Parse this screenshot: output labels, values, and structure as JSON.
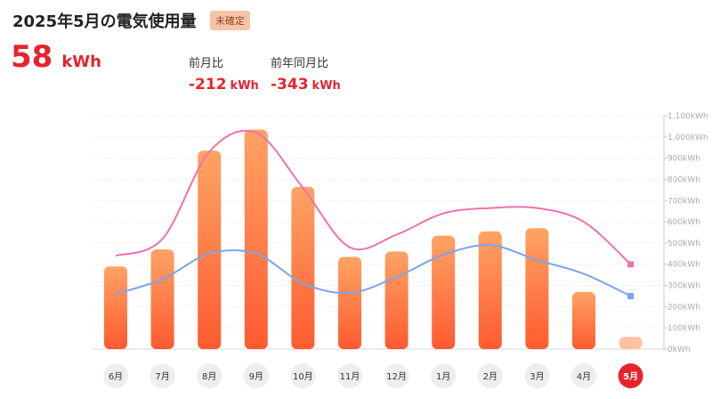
{
  "header": {
    "title": "2025年5月の電気使用量",
    "badge": "未確定"
  },
  "usage": {
    "value": "58",
    "unit": "kWh"
  },
  "comparisons": {
    "prev_month": {
      "label": "前月比",
      "value": "-212",
      "unit": "kWh"
    },
    "prev_year": {
      "label": "前年同月比",
      "value": "-343",
      "unit": "kWh"
    }
  },
  "colors": {
    "bar_gradient_top": "#ffa364",
    "bar_gradient_bottom": "#ff5a30",
    "bar_unconfirmed": "#ffc1a4",
    "prev_year_line": "#f070b0",
    "avg_line": "#7aa5ec",
    "active_month_bg": "#e8232d",
    "month_bg": "#eeeeee"
  },
  "chart_data": {
    "type": "bar",
    "categories": [
      "6月",
      "7月",
      "8月",
      "9月",
      "10月",
      "11月",
      "12月",
      "1月",
      "2月",
      "3月",
      "4月",
      "5月"
    ],
    "selected_index": 11,
    "ylim": [
      0,
      1100
    ],
    "y_ticks": [
      {
        "value": 0,
        "label": "0kWh"
      },
      {
        "value": 100,
        "label": "100kWh"
      },
      {
        "value": 200,
        "label": "200kWh"
      },
      {
        "value": 300,
        "label": "300kWh"
      },
      {
        "value": 400,
        "label": "400kWh"
      },
      {
        "value": 500,
        "label": "500kWh"
      },
      {
        "value": 600,
        "label": "600kWh"
      },
      {
        "value": 700,
        "label": "700kWh"
      },
      {
        "value": 800,
        "label": "800kWh"
      },
      {
        "value": 900,
        "label": "900kWh"
      },
      {
        "value": 1000,
        "label": "1,000kWh"
      },
      {
        "value": 1100,
        "label": "1,100kWh"
      }
    ],
    "series": [
      {
        "type": "bar",
        "values": [
          390,
          470,
          935,
          1035,
          765,
          435,
          460,
          535,
          555,
          570,
          270,
          58
        ]
      },
      {
        "type": "line",
        "values": [
          440,
          520,
          930,
          1020,
          760,
          480,
          540,
          640,
          665,
          665,
          600,
          400
        ]
      },
      {
        "type": "line",
        "values": [
          260,
          330,
          450,
          450,
          310,
          265,
          340,
          445,
          490,
          420,
          355,
          250
        ]
      }
    ]
  }
}
